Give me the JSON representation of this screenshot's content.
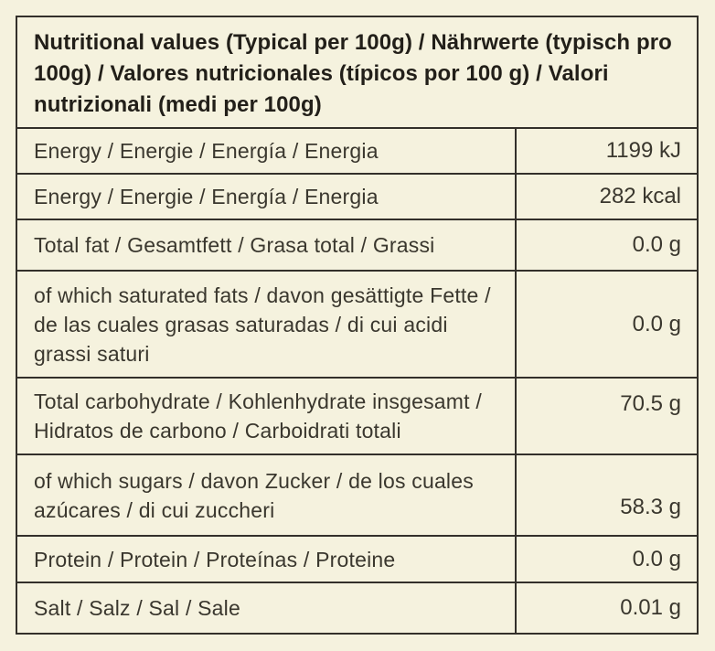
{
  "colors": {
    "page-bg": "#f5f2de",
    "border": "#33302a",
    "text": "#3a372e",
    "header-text": "#221f19"
  },
  "table": {
    "header": "Nutritional values (Typical per 100g) / Nährwerte (typisch pro 100g) / Valores nutricionales (típicos por 100 g) / Valori nutrizionali (medi per 100g)",
    "rows": [
      {
        "label": "Energy / Energie / Energía / Energia",
        "value": "1199 kJ"
      },
      {
        "label": "Energy / Energie / Energía / Energia",
        "value": "282 kcal"
      },
      {
        "label": "Total fat / Gesamtfett / Grasa total / Grassi",
        "value": "0.0 g"
      },
      {
        "label": "of which saturated fats /  davon gesättigte Fette / de las cuales grasas saturadas / di cui acidi grassi saturi",
        "value": "0.0 g"
      },
      {
        "label": "Total carbohydrate / Kohlenhydrate insgesamt / Hidratos de carbono / Carboidrati totali",
        "value": "70.5 g"
      },
      {
        "label": "of which sugars / davon Zucker / de los cuales azúcares / di cui zuccheri",
        "value": "58.3 g"
      },
      {
        "label": "Protein / Protein / Proteínas / Proteine",
        "value": "0.0 g"
      },
      {
        "label": "Salt / Salz / Sal / Sale",
        "value": "0.01 g"
      }
    ]
  }
}
